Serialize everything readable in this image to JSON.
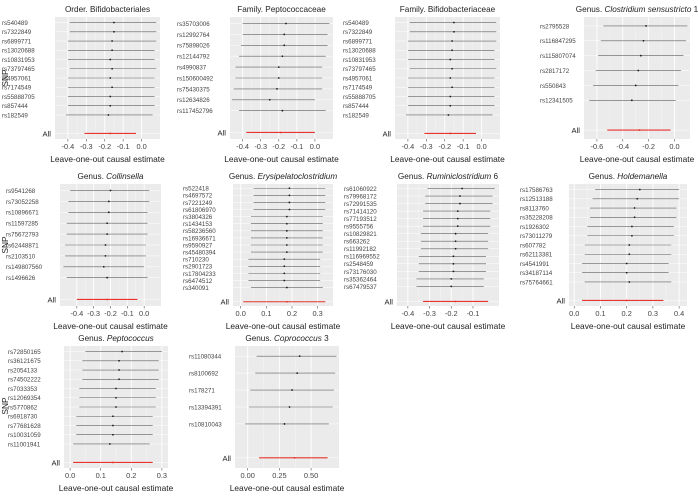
{
  "figure": {
    "ylabel": "SNP",
    "xlabel": "Leave-one-out causal estimate",
    "all_label": "All"
  },
  "colors": {
    "panel_bg": "#ebebeb",
    "grid_major": "#ffffff",
    "grid_minor": "#f4f4f4",
    "ci_line": "#5f5f5f",
    "point": "#1a1a1a",
    "all_line": "#e8342c",
    "text": "#222222",
    "tick_text": "#444444"
  },
  "chart_data": [
    {
      "type": "forest",
      "title_parts": [
        {
          "text": "Order. Bifidobacteriales",
          "italic": false
        }
      ],
      "xlabel": "Leave-one-out causal estimate",
      "ylabel": "SNP",
      "xlim": [
        -0.47,
        0.1
      ],
      "xticks": [
        -0.4,
        -0.3,
        -0.2,
        -0.1,
        0.0
      ],
      "xtick_labels": [
        "-0.4",
        "-0.3",
        "-0.2",
        "-0.1",
        "0.0"
      ],
      "snps": [
        "rs540489",
        "rs7322849",
        "rs6899771",
        "rs13020688",
        "rs10831953",
        "rs73797465",
        "rs4957061",
        "rs7174549",
        "rs55888705",
        "rs857444",
        "rs182549"
      ],
      "estimates": [
        -0.15,
        -0.15,
        -0.16,
        -0.16,
        -0.17,
        -0.16,
        -0.17,
        -0.16,
        -0.17,
        -0.17,
        -0.18
      ],
      "ci": [
        [
          -0.39,
          0.08
        ],
        [
          -0.39,
          0.08
        ],
        [
          -0.4,
          0.08
        ],
        [
          -0.4,
          0.07
        ],
        [
          -0.4,
          0.07
        ],
        [
          -0.39,
          0.08
        ],
        [
          -0.4,
          0.07
        ],
        [
          -0.4,
          0.07
        ],
        [
          -0.4,
          0.07
        ],
        [
          -0.4,
          0.07
        ],
        [
          -0.41,
          0.06
        ]
      ],
      "all": {
        "estimate": -0.17,
        "ci": [
          -0.31,
          -0.03
        ]
      }
    },
    {
      "type": "forest",
      "title_parts": [
        {
          "text": "Family. Peptococcaceae",
          "italic": false
        }
      ],
      "xlabel": "Leave-one-out causal estimate",
      "ylabel": "SNP",
      "xlim": [
        -0.47,
        0.1
      ],
      "xticks": [
        -0.4,
        -0.3,
        -0.2,
        -0.1,
        0.0
      ],
      "xtick_labels": [
        "-0.4",
        "-0.3",
        "-0.2",
        "-0.1",
        "0.0"
      ],
      "snps": [
        "rs35703006",
        "rs12992764",
        "rs75898026",
        "rs12144792",
        "rs4990837",
        "rs150600492",
        "rs75430375",
        "rs12634826",
        "rs117452796"
      ],
      "estimates": [
        -0.16,
        -0.17,
        -0.17,
        -0.18,
        -0.2,
        -0.2,
        -0.21,
        -0.25,
        -0.18
      ],
      "ci": [
        [
          -0.4,
          0.08
        ],
        [
          -0.4,
          0.07
        ],
        [
          -0.41,
          0.07
        ],
        [
          -0.42,
          0.06
        ],
        [
          -0.44,
          0.04
        ],
        [
          -0.44,
          0.04
        ],
        [
          -0.45,
          0.04
        ],
        [
          -0.46,
          0.0
        ],
        [
          -0.42,
          0.06
        ]
      ],
      "all": {
        "estimate": -0.19,
        "ci": [
          -0.38,
          0.0
        ]
      }
    },
    {
      "type": "forest",
      "title_parts": [
        {
          "text": "Family. Bifidobacteriaceae",
          "italic": false
        }
      ],
      "xlabel": "Leave-one-out causal estimate",
      "ylabel": "SNP",
      "xlim": [
        -0.47,
        0.1
      ],
      "xticks": [
        -0.4,
        -0.3,
        -0.2,
        -0.1,
        0.0
      ],
      "xtick_labels": [
        "-0.4",
        "-0.3",
        "-0.2",
        "-0.1",
        "0.0"
      ],
      "snps": [
        "rs540489",
        "rs7322849",
        "rs6899771",
        "rs13020688",
        "rs10831953",
        "rs73797465",
        "rs4957061",
        "rs7174549",
        "rs55888705",
        "rs857444",
        "rs182549"
      ],
      "estimates": [
        -0.15,
        -0.15,
        -0.16,
        -0.16,
        -0.17,
        -0.16,
        -0.17,
        -0.16,
        -0.17,
        -0.17,
        -0.18
      ],
      "ci": [
        [
          -0.39,
          0.08
        ],
        [
          -0.39,
          0.08
        ],
        [
          -0.4,
          0.08
        ],
        [
          -0.4,
          0.07
        ],
        [
          -0.4,
          0.07
        ],
        [
          -0.39,
          0.08
        ],
        [
          -0.4,
          0.07
        ],
        [
          -0.4,
          0.07
        ],
        [
          -0.4,
          0.07
        ],
        [
          -0.4,
          0.07
        ],
        [
          -0.41,
          0.06
        ]
      ],
      "all": {
        "estimate": -0.17,
        "ci": [
          -0.31,
          -0.03
        ]
      }
    },
    {
      "type": "forest",
      "title_parts": [
        {
          "text": "Genus. ",
          "italic": false
        },
        {
          "text": "Clostridium sensustricto",
          "italic": true
        },
        {
          "text": " 1",
          "italic": false
        }
      ],
      "xlabel": "Leave-one-out causal estimate",
      "ylabel": "SNP",
      "xlim": [
        -0.7,
        0.12
      ],
      "xticks": [
        -0.6,
        -0.4,
        -0.2,
        0.0
      ],
      "xtick_labels": [
        "-0.6",
        "-0.4",
        "-0.2",
        "0.0"
      ],
      "snps": [
        "rs2795528",
        "rs116847295",
        "rs115807074",
        "rs2817172",
        "rs550843",
        "rs12341505"
      ],
      "estimates": [
        -0.22,
        -0.24,
        -0.26,
        -0.28,
        -0.3,
        -0.33
      ],
      "ci": [
        [
          -0.55,
          0.1
        ],
        [
          -0.57,
          0.09
        ],
        [
          -0.59,
          0.07
        ],
        [
          -0.61,
          0.05
        ],
        [
          -0.63,
          0.03
        ],
        [
          -0.66,
          0.01
        ]
      ],
      "all": {
        "estimate": -0.27,
        "ci": [
          -0.52,
          -0.03
        ]
      }
    },
    {
      "type": "forest",
      "title_parts": [
        {
          "text": "Genus. ",
          "italic": false
        },
        {
          "text": "Collinsella",
          "italic": true
        }
      ],
      "xlabel": "Leave-one-out causal estimate",
      "ylabel": "SNP",
      "xlim": [
        -0.5,
        0.1
      ],
      "xticks": [
        -0.4,
        -0.3,
        -0.2,
        -0.1,
        0.0
      ],
      "xtick_labels": [
        "-0.4",
        "-0.3",
        "-0.2",
        "-0.1",
        "0.0"
      ],
      "snps": [
        "rs9541268",
        "rs73052258",
        "rs10896671",
        "rs11597285",
        "rs75672793",
        "rs62448871",
        "rs2103510",
        "rs149807560",
        "rs1496626"
      ],
      "estimates": [
        -0.2,
        -0.21,
        -0.21,
        -0.22,
        -0.22,
        -0.23,
        -0.23,
        -0.24,
        -0.22
      ],
      "ci": [
        [
          -0.44,
          0.03
        ],
        [
          -0.45,
          0.03
        ],
        [
          -0.45,
          0.02
        ],
        [
          -0.46,
          0.02
        ],
        [
          -0.46,
          0.02
        ],
        [
          -0.47,
          0.01
        ],
        [
          -0.47,
          0.01
        ],
        [
          -0.48,
          0.0
        ],
        [
          -0.46,
          0.02
        ]
      ],
      "all": {
        "estimate": -0.22,
        "ci": [
          -0.4,
          -0.04
        ]
      }
    },
    {
      "type": "forest",
      "title_parts": [
        {
          "text": "Genus. ",
          "italic": false
        },
        {
          "text": "Erysipelatoclostridium",
          "italic": true
        }
      ],
      "xlabel": "Leave-one-out causal estimate",
      "ylabel": "SNP",
      "xlim": [
        -0.03,
        0.36
      ],
      "xticks": [
        0.0,
        0.1,
        0.2,
        0.3
      ],
      "xtick_labels": [
        "0.0",
        "0.1",
        "0.2",
        "0.3"
      ],
      "snps": [
        "rs522418",
        "rs4697572",
        "rs7221249",
        "rs61806970",
        "rs3804326",
        "rs1434153",
        "rs58236560",
        "rs16936671",
        "rs9590927",
        "rs45480394",
        "rs710230",
        "rs2901723",
        "rs17804233",
        "rs6474512",
        "rs340091"
      ],
      "estimates": [
        0.19,
        0.19,
        0.19,
        0.19,
        0.18,
        0.18,
        0.18,
        0.18,
        0.18,
        0.18,
        0.17,
        0.17,
        0.17,
        0.17,
        0.18
      ],
      "ci": [
        [
          0.05,
          0.33
        ],
        [
          0.05,
          0.33
        ],
        [
          0.05,
          0.33
        ],
        [
          0.05,
          0.33
        ],
        [
          0.04,
          0.32
        ],
        [
          0.04,
          0.32
        ],
        [
          0.04,
          0.32
        ],
        [
          0.04,
          0.32
        ],
        [
          0.04,
          0.32
        ],
        [
          0.04,
          0.32
        ],
        [
          0.03,
          0.31
        ],
        [
          0.03,
          0.31
        ],
        [
          0.03,
          0.31
        ],
        [
          0.03,
          0.31
        ],
        [
          0.04,
          0.32
        ]
      ],
      "all": {
        "estimate": 0.18,
        "ci": [
          0.01,
          0.33
        ]
      }
    },
    {
      "type": "forest",
      "title_parts": [
        {
          "text": "Genus. ",
          "italic": false
        },
        {
          "text": "Ruminiclostridium",
          "italic": true
        },
        {
          "text": " 6",
          "italic": false
        }
      ],
      "xlabel": "Leave-one-out causal estimate",
      "ylabel": "SNP",
      "xlim": [
        -0.45,
        0.02
      ],
      "xticks": [
        -0.4,
        -0.3,
        -0.2,
        -0.1
      ],
      "xtick_labels": [
        "-0.4",
        "-0.3",
        "-0.2",
        "-0.1"
      ],
      "snps": [
        "rs61060922",
        "rs79968172",
        "rs72991535",
        "rs71414120",
        "rs77193512",
        "rs9555756",
        "rs10829821",
        "rs663262",
        "rs11992182",
        "rs116969552",
        "rs2548459",
        "rs73176030",
        "rs35362464",
        "rs67479537"
      ],
      "estimates": [
        -0.15,
        -0.16,
        -0.16,
        -0.17,
        -0.17,
        -0.17,
        -0.18,
        -0.18,
        -0.18,
        -0.19,
        -0.19,
        -0.19,
        -0.2,
        -0.2
      ],
      "ci": [
        [
          -0.31,
          0.0
        ],
        [
          -0.32,
          -0.01
        ],
        [
          -0.32,
          -0.01
        ],
        [
          -0.33,
          -0.02
        ],
        [
          -0.33,
          -0.02
        ],
        [
          -0.33,
          -0.02
        ],
        [
          -0.34,
          -0.03
        ],
        [
          -0.34,
          -0.03
        ],
        [
          -0.34,
          -0.03
        ],
        [
          -0.35,
          -0.04
        ],
        [
          -0.35,
          -0.04
        ],
        [
          -0.35,
          -0.04
        ],
        [
          -0.36,
          -0.05
        ],
        [
          -0.36,
          -0.05
        ]
      ],
      "all": {
        "estimate": -0.18,
        "ci": [
          -0.33,
          -0.03
        ]
      }
    },
    {
      "type": "forest",
      "title_parts": [
        {
          "text": "Genus. ",
          "italic": false
        },
        {
          "text": "Holdemanella",
          "italic": true
        }
      ],
      "xlabel": "Leave-one-out causal estimate",
      "ylabel": "SNP",
      "xlim": [
        -0.02,
        0.43
      ],
      "xticks": [
        0.0,
        0.1,
        0.2,
        0.3,
        0.4
      ],
      "xtick_labels": [
        "0.0",
        "0.1",
        "0.2",
        "0.3",
        "0.4"
      ],
      "snps": [
        "rs17586763",
        "rs12513188",
        "rs8113760",
        "rs35228208",
        "rs1926302",
        "rs73011279",
        "rs607782",
        "rs62113381",
        "rs4541991",
        "rs34187114",
        "rs75764661"
      ],
      "estimates": [
        0.25,
        0.24,
        0.23,
        0.23,
        0.22,
        0.22,
        0.21,
        0.21,
        0.2,
        0.2,
        0.21
      ],
      "ci": [
        [
          0.08,
          0.4
        ],
        [
          0.07,
          0.4
        ],
        [
          0.06,
          0.39
        ],
        [
          0.06,
          0.39
        ],
        [
          0.05,
          0.38
        ],
        [
          0.05,
          0.38
        ],
        [
          0.04,
          0.37
        ],
        [
          0.04,
          0.37
        ],
        [
          0.03,
          0.36
        ],
        [
          0.03,
          0.36
        ],
        [
          0.04,
          0.37
        ]
      ],
      "all": {
        "estimate": 0.2,
        "ci": [
          0.03,
          0.34
        ]
      }
    },
    {
      "type": "forest",
      "title_parts": [
        {
          "text": "Genus. ",
          "italic": false
        },
        {
          "text": "Peptococcus",
          "italic": true
        }
      ],
      "xlabel": "Leave-one-out causal estimate",
      "ylabel": "SNP",
      "xlim": [
        -0.02,
        0.32
      ],
      "xticks": [
        0.0,
        0.1,
        0.2,
        0.3
      ],
      "xtick_labels": [
        "0.0",
        "0.1",
        "0.2",
        "0.3"
      ],
      "snps": [
        "rs72850165",
        "rs36121675",
        "rs2054133",
        "rs74502222",
        "rs7033353",
        "rs12069354",
        "rs5770862",
        "rs6918730",
        "rs77681628",
        "rs10031059",
        "rs11001941"
      ],
      "estimates": [
        0.17,
        0.16,
        0.16,
        0.16,
        0.15,
        0.15,
        0.15,
        0.14,
        0.14,
        0.14,
        0.13
      ],
      "ci": [
        [
          0.05,
          0.3
        ],
        [
          0.04,
          0.29
        ],
        [
          0.04,
          0.29
        ],
        [
          0.04,
          0.29
        ],
        [
          0.03,
          0.28
        ],
        [
          0.03,
          0.28
        ],
        [
          0.03,
          0.28
        ],
        [
          0.02,
          0.27
        ],
        [
          0.02,
          0.27
        ],
        [
          0.02,
          0.27
        ],
        [
          0.01,
          0.26
        ]
      ],
      "all": {
        "estimate": 0.14,
        "ci": [
          0.01,
          0.27
        ]
      }
    },
    {
      "type": "forest",
      "title_parts": [
        {
          "text": "Genus. ",
          "italic": false
        },
        {
          "text": "Coprococcus",
          "italic": true
        },
        {
          "text": " 3",
          "italic": false
        }
      ],
      "xlabel": "Leave-one-out causal estimate",
      "ylabel": "SNP",
      "xlim": [
        -0.1,
        0.72
      ],
      "xticks": [
        0.0,
        0.25,
        0.5
      ],
      "xtick_labels": [
        "0.00",
        "0.25",
        "0.50"
      ],
      "snps": [
        "rs11080344",
        "rs8100692",
        "rs178271",
        "rs13394391",
        "rs10810043"
      ],
      "estimates": [
        0.41,
        0.39,
        0.35,
        0.33,
        0.29
      ],
      "ci": [
        [
          0.07,
          0.7
        ],
        [
          0.06,
          0.69
        ],
        [
          0.02,
          0.68
        ],
        [
          0.01,
          0.67
        ],
        [
          -0.02,
          0.64
        ]
      ],
      "all": {
        "estimate": 0.37,
        "ci": [
          0.09,
          0.63
        ]
      }
    }
  ]
}
